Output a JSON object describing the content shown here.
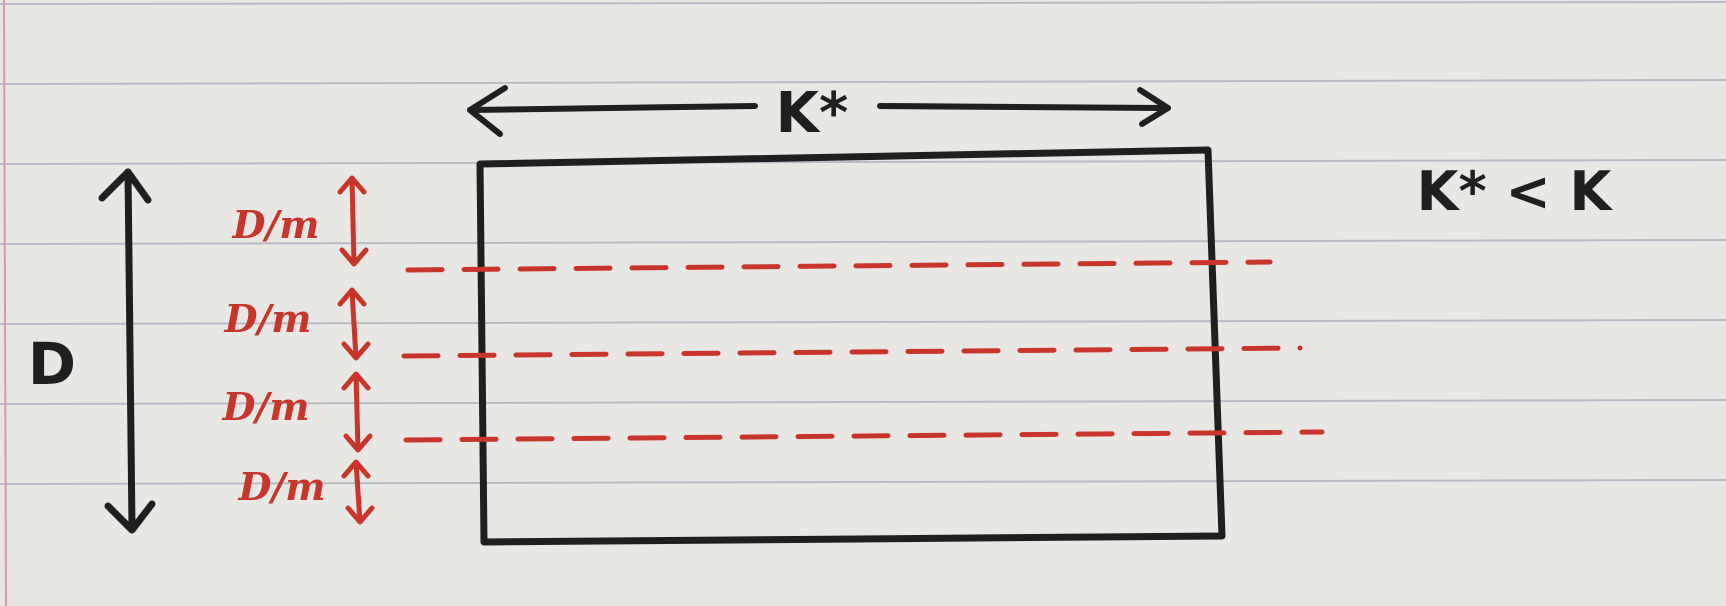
{
  "labels": {
    "width": "K*",
    "condition": "K* < K",
    "height": "D",
    "slice": "D/m"
  },
  "slices": {
    "count": 4,
    "labels": [
      "D/m",
      "D/m",
      "D/m",
      "D/m"
    ]
  },
  "colors": {
    "paper": "#e9e7e4",
    "rule_lines": "#b9bcc4",
    "margin_line": "#d99aa0",
    "ink": "#1f1f1f",
    "red_ink": "#c8352a"
  }
}
